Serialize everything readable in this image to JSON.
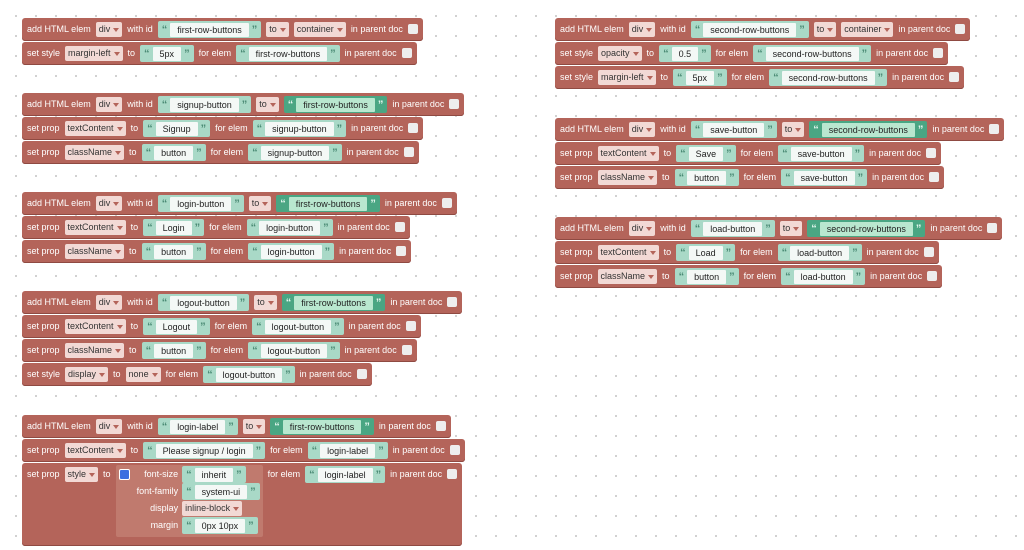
{
  "stacks": [
    {
      "blocks": [
        {
          "parts": [
            {
              "label": "add HTML elem"
            },
            {
              "dropdown": "div"
            },
            {
              "label": "with id"
            },
            {
              "text": "first-row-buttons"
            },
            {
              "dropdown": "to"
            },
            {
              "dropdown": "container"
            },
            {
              "label": "in parent doc"
            }
          ]
        },
        {
          "parts": [
            {
              "label": "set style"
            },
            {
              "dropdown": "margin-left"
            },
            {
              "label": "to"
            },
            {
              "text": "5px"
            },
            {
              "label": "for elem"
            },
            {
              "text": "first-row-buttons"
            },
            {
              "label": "in parent doc"
            }
          ]
        }
      ]
    },
    {
      "blocks": [
        {
          "parts": [
            {
              "label": "add HTML elem"
            },
            {
              "dropdown": "div"
            },
            {
              "label": "with id"
            },
            {
              "text": "signup-button"
            },
            {
              "dropdown": "to"
            },
            {
              "element": "first-row-buttons"
            },
            {
              "label": "in parent doc"
            }
          ]
        },
        {
          "parts": [
            {
              "label": "set prop"
            },
            {
              "dropdown": "textContent"
            },
            {
              "label": "to"
            },
            {
              "text": "Signup"
            },
            {
              "label": "for elem"
            },
            {
              "text": "signup-button"
            },
            {
              "label": "in parent doc"
            }
          ]
        },
        {
          "parts": [
            {
              "label": "set prop"
            },
            {
              "dropdown": "className"
            },
            {
              "label": "to"
            },
            {
              "text": "button"
            },
            {
              "label": "for elem"
            },
            {
              "text": "signup-button"
            },
            {
              "label": "in parent doc"
            }
          ]
        }
      ]
    },
    {
      "blocks": [
        {
          "parts": [
            {
              "label": "add HTML elem"
            },
            {
              "dropdown": "div"
            },
            {
              "label": "with id"
            },
            {
              "text": "login-button"
            },
            {
              "dropdown": "to"
            },
            {
              "element": "first-row-buttons"
            },
            {
              "label": "in parent doc"
            }
          ]
        },
        {
          "parts": [
            {
              "label": "set prop"
            },
            {
              "dropdown": "textContent"
            },
            {
              "label": "to"
            },
            {
              "text": "Login"
            },
            {
              "label": "for elem"
            },
            {
              "text": "login-button"
            },
            {
              "label": "in parent doc"
            }
          ]
        },
        {
          "parts": [
            {
              "label": "set prop"
            },
            {
              "dropdown": "className"
            },
            {
              "label": "to"
            },
            {
              "text": "button"
            },
            {
              "label": "for elem"
            },
            {
              "text": "login-button"
            },
            {
              "label": "in parent doc"
            }
          ]
        }
      ]
    },
    {
      "blocks": [
        {
          "parts": [
            {
              "label": "add HTML elem"
            },
            {
              "dropdown": "div"
            },
            {
              "label": "with id"
            },
            {
              "text": "logout-button"
            },
            {
              "dropdown": "to"
            },
            {
              "element": "first-row-buttons"
            },
            {
              "label": "in parent doc"
            }
          ]
        },
        {
          "parts": [
            {
              "label": "set prop"
            },
            {
              "dropdown": "textContent"
            },
            {
              "label": "to"
            },
            {
              "text": "Logout"
            },
            {
              "label": "for elem"
            },
            {
              "text": "logout-button"
            },
            {
              "label": "in parent doc"
            }
          ]
        },
        {
          "parts": [
            {
              "label": "set prop"
            },
            {
              "dropdown": "className"
            },
            {
              "label": "to"
            },
            {
              "text": "button"
            },
            {
              "label": "for elem"
            },
            {
              "text": "logout-button"
            },
            {
              "label": "in parent doc"
            }
          ]
        },
        {
          "parts": [
            {
              "label": "set style"
            },
            {
              "dropdown": "display"
            },
            {
              "label": "to"
            },
            {
              "dropdown": "none"
            },
            {
              "label": "for elem"
            },
            {
              "text": "logout-button"
            },
            {
              "label": "in parent doc"
            }
          ]
        }
      ]
    },
    {
      "blocks": [
        {
          "parts": [
            {
              "label": "add HTML elem"
            },
            {
              "dropdown": "div"
            },
            {
              "label": "with id"
            },
            {
              "text": "login-label"
            },
            {
              "dropdown": "to"
            },
            {
              "element": "first-row-buttons"
            },
            {
              "label": "in parent doc"
            }
          ]
        },
        {
          "parts": [
            {
              "label": "set prop"
            },
            {
              "dropdown": "textContent"
            },
            {
              "label": "to"
            },
            {
              "text": "Please signup / login"
            },
            {
              "label": "for elem"
            },
            {
              "text": "login-label"
            },
            {
              "label": "in parent doc"
            }
          ]
        },
        {
          "parts": [
            {
              "label": "set prop"
            },
            {
              "dropdown": "style"
            },
            {
              "label": "to"
            },
            {
              "object": [
                {
                  "key": "font-size",
                  "text": "inherit"
                },
                {
                  "key": "font-family",
                  "text": "system-ui"
                },
                {
                  "key": "display",
                  "dropdown": "inline-block"
                },
                {
                  "key": "margin",
                  "text": "0px 10px"
                }
              ]
            },
            {
              "label": "for elem"
            },
            {
              "text": "login-label"
            },
            {
              "label": "in parent doc"
            }
          ]
        }
      ]
    },
    {
      "blocks": [
        {
          "parts": [
            {
              "label": "add HTML elem"
            },
            {
              "dropdown": "div"
            },
            {
              "label": "with id"
            },
            {
              "text": "second-row-buttons"
            },
            {
              "dropdown": "to"
            },
            {
              "dropdown": "container"
            },
            {
              "label": "in parent doc"
            }
          ]
        },
        {
          "parts": [
            {
              "label": "set style"
            },
            {
              "dropdown": "opacity"
            },
            {
              "label": "to"
            },
            {
              "text": "0.5"
            },
            {
              "label": "for elem"
            },
            {
              "text": "second-row-buttons"
            },
            {
              "label": "in parent doc"
            }
          ]
        },
        {
          "parts": [
            {
              "label": "set style"
            },
            {
              "dropdown": "margin-left"
            },
            {
              "label": "to"
            },
            {
              "text": "5px"
            },
            {
              "label": "for elem"
            },
            {
              "text": "second-row-buttons"
            },
            {
              "label": "in parent doc"
            }
          ]
        }
      ]
    },
    {
      "blocks": [
        {
          "parts": [
            {
              "label": "add HTML elem"
            },
            {
              "dropdown": "div"
            },
            {
              "label": "with id"
            },
            {
              "text": "save-button"
            },
            {
              "dropdown": "to"
            },
            {
              "element": "second-row-buttons"
            },
            {
              "label": "in parent doc"
            }
          ]
        },
        {
          "parts": [
            {
              "label": "set prop"
            },
            {
              "dropdown": "textContent"
            },
            {
              "label": "to"
            },
            {
              "text": "Save"
            },
            {
              "label": "for elem"
            },
            {
              "text": "save-button"
            },
            {
              "label": "in parent doc"
            }
          ]
        },
        {
          "parts": [
            {
              "label": "set prop"
            },
            {
              "dropdown": "className"
            },
            {
              "label": "to"
            },
            {
              "text": "button"
            },
            {
              "label": "for elem"
            },
            {
              "text": "save-button"
            },
            {
              "label": "in parent doc"
            }
          ]
        }
      ]
    },
    {
      "blocks": [
        {
          "parts": [
            {
              "label": "add HTML elem"
            },
            {
              "dropdown": "div"
            },
            {
              "label": "with id"
            },
            {
              "text": "load-button"
            },
            {
              "dropdown": "to"
            },
            {
              "element": "second-row-buttons"
            },
            {
              "label": "in parent doc"
            }
          ]
        },
        {
          "parts": [
            {
              "label": "set prop"
            },
            {
              "dropdown": "textContent"
            },
            {
              "label": "to"
            },
            {
              "text": "Load"
            },
            {
              "label": "for elem"
            },
            {
              "text": "load-button"
            },
            {
              "label": "in parent doc"
            }
          ]
        },
        {
          "parts": [
            {
              "label": "set prop"
            },
            {
              "dropdown": "className"
            },
            {
              "label": "to"
            },
            {
              "text": "button"
            },
            {
              "label": "for elem"
            },
            {
              "text": "load-button"
            },
            {
              "label": "in parent doc"
            }
          ]
        }
      ]
    }
  ]
}
